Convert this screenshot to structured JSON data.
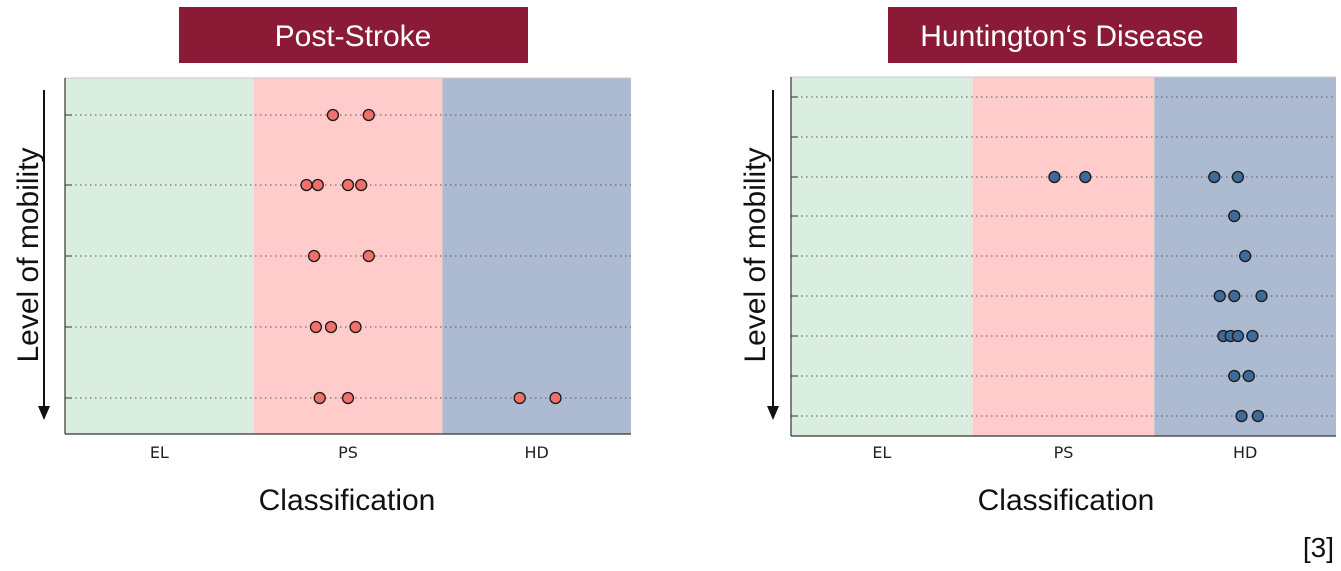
{
  "colors": {
    "title_bg": "#8b1a37",
    "title_fg": "#ffffff",
    "band_EL": "#d9eedf",
    "band_PS": "#ffcbcb",
    "band_HD": "#adbbd2",
    "marker_stroke": "#1a1a1a",
    "gridline": "#555555"
  },
  "reference": "[3]",
  "chart_data": [
    {
      "type": "scatter",
      "title": "Post-Stroke",
      "xlabel": "Classification",
      "ylabel": "Level of mobility",
      "categories": [
        "EL",
        "PS",
        "HD"
      ],
      "levels": 5,
      "y_direction": "top-to-bottom",
      "grid": "horizontal dotted",
      "marker_color": "#f0706a",
      "points": [
        {
          "x": "PS",
          "offset": -0.08,
          "level": 1
        },
        {
          "x": "PS",
          "offset": 0.11,
          "level": 1
        },
        {
          "x": "PS",
          "offset": -0.22,
          "level": 2
        },
        {
          "x": "PS",
          "offset": -0.16,
          "level": 2
        },
        {
          "x": "PS",
          "offset": 0.0,
          "level": 2
        },
        {
          "x": "PS",
          "offset": 0.07,
          "level": 2
        },
        {
          "x": "PS",
          "offset": -0.18,
          "level": 3
        },
        {
          "x": "PS",
          "offset": 0.11,
          "level": 3
        },
        {
          "x": "PS",
          "offset": -0.17,
          "level": 4
        },
        {
          "x": "PS",
          "offset": -0.09,
          "level": 4
        },
        {
          "x": "PS",
          "offset": 0.04,
          "level": 4
        },
        {
          "x": "PS",
          "offset": -0.15,
          "level": 5
        },
        {
          "x": "PS",
          "offset": 0.0,
          "level": 5
        },
        {
          "x": "HD",
          "offset": -0.09,
          "level": 5
        },
        {
          "x": "HD",
          "offset": 0.1,
          "level": 5
        }
      ]
    },
    {
      "type": "scatter",
      "title": "Huntington‘s Disease",
      "xlabel": "Classification",
      "ylabel": "Level of mobility",
      "categories": [
        "EL",
        "PS",
        "HD"
      ],
      "levels": 9,
      "y_direction": "top-to-bottom",
      "grid": "horizontal dotted",
      "marker_color": "#3f6b9a",
      "points": [
        {
          "x": "PS",
          "offset": -0.05,
          "level": 3
        },
        {
          "x": "PS",
          "offset": 0.12,
          "level": 3
        },
        {
          "x": "HD",
          "offset": -0.17,
          "level": 3
        },
        {
          "x": "HD",
          "offset": -0.04,
          "level": 3
        },
        {
          "x": "HD",
          "offset": -0.06,
          "level": 4
        },
        {
          "x": "HD",
          "offset": 0.0,
          "level": 5
        },
        {
          "x": "HD",
          "offset": -0.14,
          "level": 6
        },
        {
          "x": "HD",
          "offset": -0.06,
          "level": 6
        },
        {
          "x": "HD",
          "offset": 0.09,
          "level": 6
        },
        {
          "x": "HD",
          "offset": -0.12,
          "level": 7
        },
        {
          "x": "HD",
          "offset": -0.08,
          "level": 7
        },
        {
          "x": "HD",
          "offset": -0.04,
          "level": 7
        },
        {
          "x": "HD",
          "offset": 0.04,
          "level": 7
        },
        {
          "x": "HD",
          "offset": -0.06,
          "level": 8
        },
        {
          "x": "HD",
          "offset": 0.02,
          "level": 8
        },
        {
          "x": "HD",
          "offset": -0.02,
          "level": 9
        },
        {
          "x": "HD",
          "offset": 0.07,
          "level": 9
        }
      ]
    }
  ]
}
